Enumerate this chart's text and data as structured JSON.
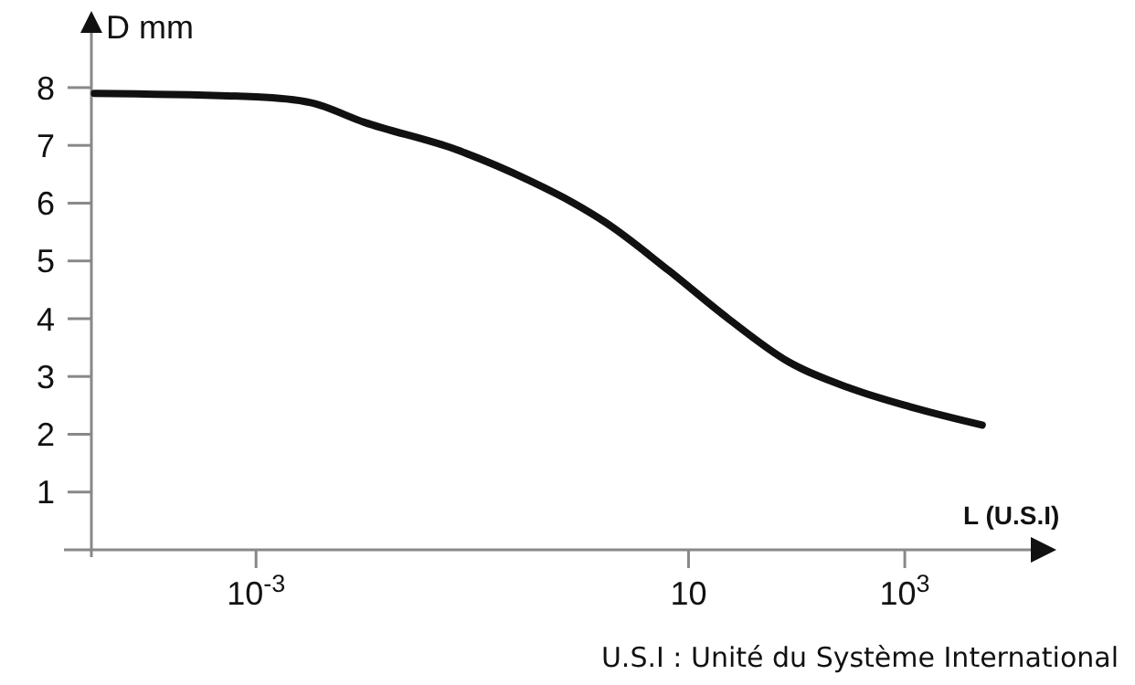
{
  "chart_data": {
    "type": "line",
    "ylabel": "D mm",
    "xlabel": "L (U.S.I)",
    "annotations": [
      "U.S.I : Unité du Système International"
    ],
    "log": "x",
    "grid": false,
    "marker": "none",
    "line_style": "solid",
    "xlim": [
      3e-05,
      20000
    ],
    "xticks": [
      {
        "value": 0.001,
        "label": "10$^{-3}$"
      },
      10,
      {
        "value": 1000,
        "label": "10$^{3}$"
      }
    ],
    "ylim": [
      0,
      9.2
    ],
    "yticks": [
      1,
      2,
      3,
      4,
      5,
      6,
      7,
      8
    ],
    "series": [
      {
        "color": "#111111",
        "x": [
          3.2e-05,
          0.001,
          0.0032,
          0.01,
          0.07,
          0.33,
          0.87,
          1.7,
          6.6,
          23,
          83,
          320,
          1100,
          5200
        ],
        "values": [
          7.9,
          7.84,
          7.74,
          7.4,
          6.93,
          6.4,
          6.0,
          5.67,
          4.83,
          4.01,
          3.26,
          2.79,
          2.48,
          2.16
        ]
      }
    ]
  }
}
